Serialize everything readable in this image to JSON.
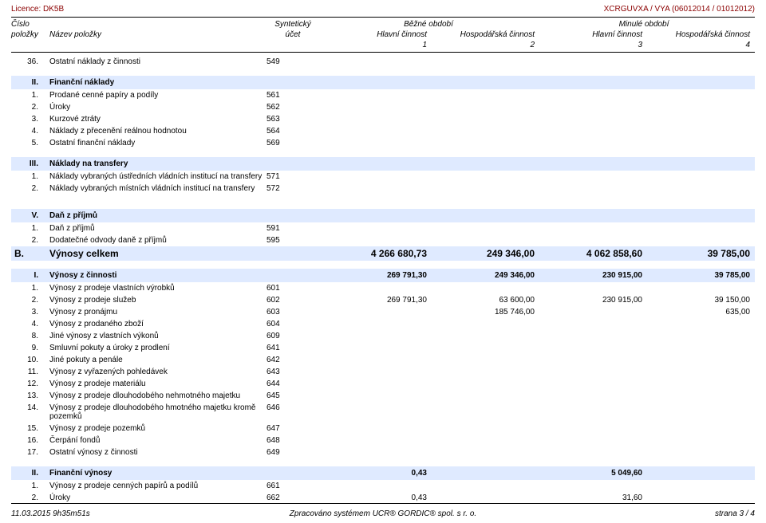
{
  "meta": {
    "licence_label": "Licence: DK5B",
    "doc_code": "XCRGUVXA / VYA  (06012014 / 01012012)"
  },
  "header": {
    "cislo": "Číslo",
    "polozky": "položky",
    "nazev": "Název položky",
    "synteticky": "Syntetický",
    "ucet": "účet",
    "bezne": "Běžné období",
    "minule": "Minulé období",
    "hlavni": "Hlavní činnost",
    "hosp": "Hospodářská činnost",
    "n1": "1",
    "n2": "2",
    "n3": "3",
    "n4": "4"
  },
  "sections": {
    "pre": [
      {
        "num": "36.",
        "name": "Ostatní náklady z činnosti",
        "ucet": "549"
      }
    ],
    "II_fin": {
      "head_num": "II.",
      "head_name": "Finanční náklady",
      "rows": [
        {
          "num": "1.",
          "name": "Prodané cenné papíry a podíly",
          "ucet": "561"
        },
        {
          "num": "2.",
          "name": "Úroky",
          "ucet": "562"
        },
        {
          "num": "3.",
          "name": "Kurzové ztráty",
          "ucet": "563"
        },
        {
          "num": "4.",
          "name": "Náklady z přecenění reálnou hodnotou",
          "ucet": "564"
        },
        {
          "num": "5.",
          "name": "Ostatní finanční náklady",
          "ucet": "569"
        }
      ]
    },
    "III_trans": {
      "head_num": "III.",
      "head_name": "Náklady na transfery",
      "rows": [
        {
          "num": "1.",
          "name": "Náklady vybraných ústředních vládních institucí na transfery",
          "ucet": "571"
        },
        {
          "num": "2.",
          "name": "Náklady vybraných místních vládních institucí na transfery",
          "ucet": "572"
        }
      ]
    },
    "V_dan": {
      "head_num": "V.",
      "head_name": "Daň z příjmů",
      "rows": [
        {
          "num": "1.",
          "name": "Daň z příjmů",
          "ucet": "591"
        },
        {
          "num": "2.",
          "name": "Dodatečné odvody daně z příjmů",
          "ucet": "595"
        }
      ]
    },
    "B_total": {
      "head_num": "B.",
      "head_name": "Výnosy celkem",
      "v1": "4 266 680,73",
      "v2": "249 346,00",
      "v3": "4 062 858,60",
      "v4": "39 785,00"
    },
    "I_vynosy": {
      "head_num": "I.",
      "head_name": "Výnosy z činnosti",
      "v1": "269 791,30",
      "v2": "249 346,00",
      "v3": "230 915,00",
      "v4": "39 785,00",
      "rows": [
        {
          "num": "1.",
          "name": "Výnosy z prodeje vlastních výrobků",
          "ucet": "601"
        },
        {
          "num": "2.",
          "name": "Výnosy z prodeje služeb",
          "ucet": "602",
          "v1": "269 791,30",
          "v2": "63 600,00",
          "v3": "230 915,00",
          "v4": "39 150,00"
        },
        {
          "num": "3.",
          "name": "Výnosy z pronájmu",
          "ucet": "603",
          "v2": "185 746,00",
          "v4": "635,00"
        },
        {
          "num": "4.",
          "name": "Výnosy z prodaného zboží",
          "ucet": "604"
        },
        {
          "num": "8.",
          "name": "Jiné výnosy z vlastních výkonů",
          "ucet": "609"
        },
        {
          "num": "9.",
          "name": "Smluvní pokuty a úroky z prodlení",
          "ucet": "641"
        },
        {
          "num": "10.",
          "name": "Jiné pokuty a penále",
          "ucet": "642"
        },
        {
          "num": "11.",
          "name": "Výnosy z vyřazených pohledávek",
          "ucet": "643"
        },
        {
          "num": "12.",
          "name": "Výnosy z prodeje materiálu",
          "ucet": "644"
        },
        {
          "num": "13.",
          "name": "Výnosy z prodeje dlouhodobého nehmotného majetku",
          "ucet": "645"
        },
        {
          "num": "14.",
          "name": "Výnosy z prodeje dlouhodobého hmotného majetku kromě pozemků",
          "ucet": "646"
        },
        {
          "num": "15.",
          "name": "Výnosy z prodeje pozemků",
          "ucet": "647"
        },
        {
          "num": "16.",
          "name": "Čerpání fondů",
          "ucet": "648"
        },
        {
          "num": "17.",
          "name": "Ostatní výnosy z činnosti",
          "ucet": "649"
        }
      ]
    },
    "II_finvyn": {
      "head_num": "II.",
      "head_name": "Finanční výnosy",
      "v1": "0,43",
      "v3": "5 049,60",
      "rows": [
        {
          "num": "1.",
          "name": "Výnosy z prodeje cenných papírů a podílů",
          "ucet": "661"
        },
        {
          "num": "2.",
          "name": "Úroky",
          "ucet": "662",
          "v1": "0,43",
          "v3": "31,60"
        }
      ]
    }
  },
  "footer": {
    "left": "11.03.2015 9h35m51s",
    "center": "Zpracováno systémem  UCR® GORDIC® spol. s  r. o.",
    "right": "strana 3 / 4"
  },
  "style": {
    "section_bg": "#dfeaff",
    "header_text_color": "#8b0000"
  }
}
